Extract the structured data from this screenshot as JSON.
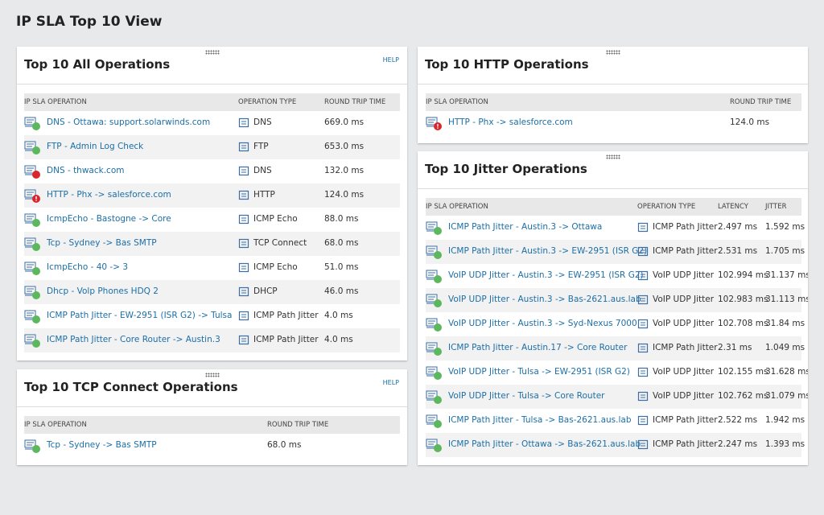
{
  "page_title": "IP SLA Top 10 View",
  "panels": [
    {
      "title": "Top 10 All Operations",
      "help": "HELP",
      "columns": [
        "IP SLA OPERATION",
        "OPERATION TYPE",
        "ROUND TRIP TIME"
      ],
      "rows": [
        {
          "status": "up",
          "cells": [
            "DNS - Ottawa: support.solarwinds.com",
            "DNS",
            "669.0 ms"
          ]
        },
        {
          "status": "up",
          "cells": [
            "FTP - Admin Log Check",
            "FTP",
            "653.0 ms"
          ]
        },
        {
          "status": "down",
          "cells": [
            "DNS - thwack.com",
            "DNS",
            "132.0 ms"
          ]
        },
        {
          "status": "warning",
          "cells": [
            "HTTP - Phx -> salesforce.com",
            "HTTP",
            "124.0 ms"
          ]
        },
        {
          "status": "up",
          "cells": [
            "IcmpEcho - Bastogne -> Core",
            "ICMP Echo",
            "88.0 ms"
          ]
        },
        {
          "status": "up",
          "cells": [
            "Tcp - Sydney -> Bas SMTP",
            "TCP Connect",
            "68.0 ms"
          ]
        },
        {
          "status": "up",
          "cells": [
            "IcmpEcho - 40 -> 3",
            "ICMP Echo",
            "51.0 ms"
          ]
        },
        {
          "status": "up",
          "cells": [
            "Dhcp - Volp Phones HDQ 2",
            "DHCP",
            "46.0 ms"
          ]
        },
        {
          "status": "up",
          "cells": [
            "ICMP Path Jitter - EW-2951 (ISR G2) -> Tulsa",
            "ICMP Path Jitter",
            "4.0 ms"
          ]
        },
        {
          "status": "up",
          "cells": [
            "ICMP Path Jitter - Core Router -> Austin.3",
            "ICMP Path Jitter",
            "4.0 ms"
          ]
        }
      ]
    },
    {
      "title": "Top 10 TCP Connect Operations",
      "help": "HELP",
      "columns": [
        "IP SLA OPERATION",
        "ROUND TRIP TIME"
      ],
      "rows": [
        {
          "status": "up",
          "cells": [
            "Tcp - Sydney -> Bas SMTP",
            "68.0 ms"
          ]
        }
      ]
    },
    {
      "title": "Top 10 HTTP Operations",
      "columns": [
        "IP SLA OPERATION",
        "ROUND TRIP TIME"
      ],
      "rows": [
        {
          "status": "warning",
          "cells": [
            "HTTP - Phx -> salesforce.com",
            "124.0 ms"
          ]
        }
      ]
    },
    {
      "title": "Top 10 Jitter Operations",
      "columns": [
        "IP SLA OPERATION",
        "OPERATION TYPE",
        "LATENCY",
        "JITTER"
      ],
      "rows": [
        {
          "status": "up",
          "cells": [
            "ICMP Path Jitter - Austin.3 -> Ottawa",
            "ICMP Path Jitter",
            "2.497 ms",
            "1.592 ms"
          ]
        },
        {
          "status": "up",
          "cells": [
            "ICMP Path Jitter - Austin.3 -> EW-2951 (ISR G2)",
            "ICMP Path Jitter",
            "2.531 ms",
            "1.705 ms"
          ]
        },
        {
          "status": "up",
          "cells": [
            "VoIP UDP Jitter - Austin.3 -> EW-2951 (ISR G2)",
            "VoIP UDP Jitter",
            "102.994 ms",
            "31.137 ms"
          ]
        },
        {
          "status": "up",
          "cells": [
            "VoIP UDP Jitter - Austin.3 -> Bas-2621.aus.lab",
            "VoIP UDP Jitter",
            "102.983 ms",
            "31.113 ms"
          ]
        },
        {
          "status": "up",
          "cells": [
            "VoIP UDP Jitter - Austin.3 -> Syd-Nexus 7000",
            "VoIP UDP Jitter",
            "102.708 ms",
            "31.84 ms"
          ]
        },
        {
          "status": "up",
          "cells": [
            "ICMP Path Jitter - Austin.17 -> Core Router",
            "ICMP Path Jitter",
            "2.31 ms",
            "1.049 ms"
          ]
        },
        {
          "status": "up",
          "cells": [
            "VoIP UDP Jitter - Tulsa -> EW-2951 (ISR G2)",
            "VoIP UDP Jitter",
            "102.155 ms",
            "31.628 ms"
          ]
        },
        {
          "status": "up",
          "cells": [
            "VoIP UDP Jitter - Tulsa -> Core Router",
            "VoIP UDP Jitter",
            "102.762 ms",
            "31.079 ms"
          ]
        },
        {
          "status": "up",
          "cells": [
            "ICMP Path Jitter - Tulsa -> Bas-2621.aus.lab",
            "ICMP Path Jitter",
            "2.522 ms",
            "1.942 ms"
          ]
        },
        {
          "status": "up",
          "cells": [
            "ICMP Path Jitter - Ottawa -> Bas-2621.aus.lab",
            "ICMP Path Jitter",
            "2.247 ms",
            "1.393 ms"
          ]
        }
      ]
    }
  ]
}
